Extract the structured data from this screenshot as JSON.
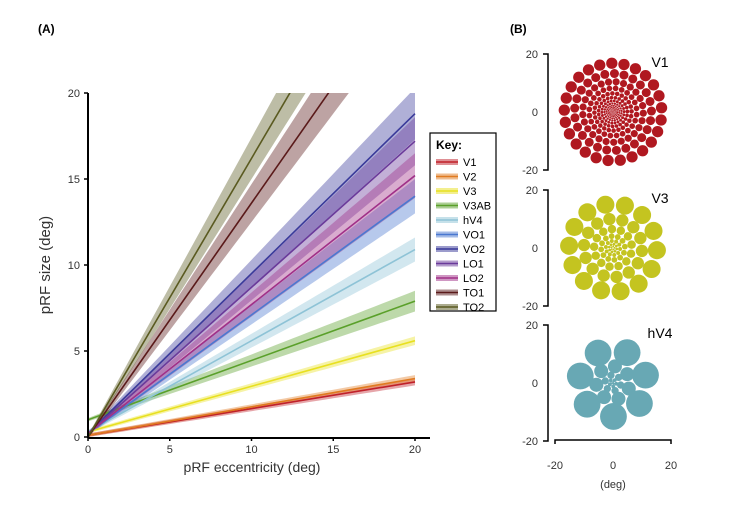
{
  "panel_a_label": "(A)",
  "panel_b_label": "(B)",
  "chart_data": [
    {
      "type": "line",
      "xlabel": "pRF eccentricity (deg)",
      "ylabel": "pRF size (deg)",
      "xlim": [
        0,
        20
      ],
      "ylim": [
        0,
        20
      ],
      "xticks": [
        "0",
        "5",
        "10",
        "15",
        "20"
      ],
      "yticks": [
        "0",
        "5",
        "10",
        "15",
        "20"
      ],
      "grid": false,
      "legend": {
        "title": "Key:",
        "placement": "right"
      },
      "series": [
        {
          "name": "V1",
          "intercept": 0.1,
          "y_at_20": 3.2,
          "band": 0.1,
          "color": "#c0202a"
        },
        {
          "name": "V2",
          "intercept": 0.1,
          "y_at_20": 3.4,
          "band": 0.1,
          "color": "#e07a20"
        },
        {
          "name": "V3",
          "intercept": 0.3,
          "y_at_20": 5.6,
          "band": 0.15,
          "color": "#e8e020"
        },
        {
          "name": "V3AB",
          "intercept": 1.0,
          "y_at_20": 7.9,
          "band": 0.5,
          "color": "#5aa02a"
        },
        {
          "name": "hV4",
          "intercept": 0.3,
          "y_at_20": 10.9,
          "band": 0.6,
          "color": "#8ec3d6"
        },
        {
          "name": "VO1",
          "intercept": 0.2,
          "y_at_20": 14.0,
          "band": 0.9,
          "color": "#4a78d0"
        },
        {
          "name": "VO2",
          "intercept": 0.2,
          "y_at_20": 18.8,
          "band": 1.4,
          "color": "#3a3a9a"
        },
        {
          "name": "LO1",
          "intercept": 0.2,
          "y_at_20": 17.2,
          "band": 1.3,
          "color": "#6a3a9a"
        },
        {
          "name": "LO2",
          "intercept": 0.2,
          "y_at_20": 15.2,
          "band": 1.2,
          "color": "#a03088"
        },
        {
          "name": "TO1",
          "intercept": 0.0,
          "y_at_20": 27.2,
          "band": 2.0,
          "color": "#5a1a1a"
        },
        {
          "name": "TO2",
          "intercept": 0.0,
          "y_at_20": 32.4,
          "band": 2.2,
          "color": "#5a5a20"
        }
      ]
    },
    {
      "type": "scatter",
      "description_axes": {
        "xlabel": "(deg)",
        "xticks": [
          "-20",
          "0",
          "20"
        ],
        "yticks": [
          "20",
          "0",
          "-20"
        ]
      },
      "panels": [
        {
          "name": "V1",
          "color": "#b01820"
        },
        {
          "name": "V3",
          "color": "#c4c420"
        },
        {
          "name": "hV4",
          "color": "#68a8b4"
        }
      ]
    }
  ]
}
